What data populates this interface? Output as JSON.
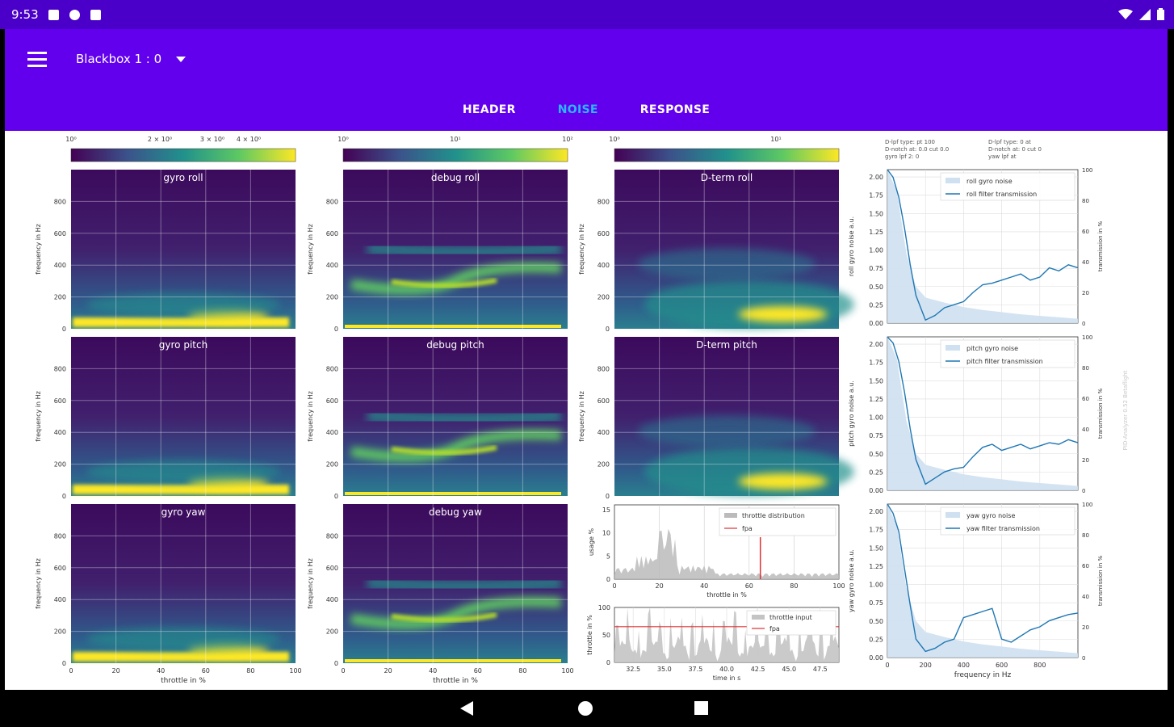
{
  "status_bar": {
    "time": "9:53"
  },
  "app_bar": {
    "dropdown_label": "Blackbox 1 : 0"
  },
  "tabs": [
    {
      "label": "HEADER",
      "active": false
    },
    {
      "label": "NOISE",
      "active": true
    },
    {
      "label": "RESPONSE",
      "active": false
    }
  ],
  "spectrograms": {
    "colorbars": [
      {
        "tick_labels": [
          "10⁰",
          "2 × 10⁰",
          "3 × 10⁰",
          "4 × 10⁰"
        ]
      },
      {
        "tick_labels": [
          "10⁰",
          "10¹",
          "10²"
        ]
      },
      {
        "tick_labels": [
          "10⁰",
          "10¹"
        ]
      }
    ],
    "titles": [
      [
        "gyro roll",
        "debug roll",
        "D-term roll"
      ],
      [
        "gyro pitch",
        "debug pitch",
        "D-term pitch"
      ],
      [
        "gyro yaw",
        "debug yaw",
        null
      ]
    ],
    "ylabel": "frequency in Hz",
    "xlabel": "throttle in %",
    "y_ticks": [
      "0",
      "200",
      "400",
      "600",
      "800"
    ],
    "x_ticks": [
      "0",
      "20",
      "40",
      "60",
      "80",
      "100"
    ]
  },
  "throttle_dist": {
    "ylabel": "usage %",
    "xlabel": "throttle in %",
    "y_ticks": [
      "0",
      "5",
      "10",
      "15"
    ],
    "x_ticks": [
      "0",
      "20",
      "40",
      "60",
      "80",
      "100"
    ],
    "legend": [
      "throttle distribution",
      "fpa"
    ]
  },
  "throttle_input": {
    "ylabel": "throttle in %",
    "xlabel": "time in s",
    "y_ticks": [
      "0",
      "50",
      "100"
    ],
    "x_ticks": [
      "32.5",
      "35.0",
      "37.5",
      "40.0",
      "42.5",
      "45.0",
      "47.5"
    ],
    "legend": [
      "throttle input",
      "fpa"
    ]
  },
  "filter_info": [
    "D-lpf type: pt 100",
    "D-notch at: 0.0 cut 0.0",
    "gyro lpf 2: 0",
    "D-lpf type: 0 at",
    "D-notch at: 0 cut 0",
    "yaw lpf at"
  ],
  "noise_plots": {
    "ylabels": [
      "roll gyro noise a.u.",
      "pitch gyro noise a.u.",
      "yaw gyro noise a.u."
    ],
    "legends": [
      [
        "roll gyro noise",
        "roll filter transmission"
      ],
      [
        "pitch gyro noise",
        "pitch filter transmission"
      ],
      [
        "yaw gyro noise",
        "yaw filter transmission"
      ]
    ],
    "y_ticks": [
      "0.00",
      "0.25",
      "0.50",
      "0.75",
      "1.00",
      "1.25",
      "1.50",
      "1.75",
      "2.00"
    ],
    "y2_ticks": [
      "0",
      "20",
      "40",
      "60",
      "80",
      "100"
    ],
    "y2_label": "transmission in %",
    "x_ticks": [
      "0",
      "200",
      "400",
      "600",
      "800"
    ],
    "xlabel": "frequency in Hz",
    "side_note": "PID-Analyzer 0.52 Betaflight"
  },
  "chart_data": [
    {
      "type": "heatmap",
      "title": "gyro roll",
      "x_range": [
        0,
        100
      ],
      "y_range": [
        0,
        1000
      ],
      "xlabel": "throttle in %",
      "ylabel": "frequency in Hz"
    },
    {
      "type": "heatmap",
      "title": "debug roll",
      "x_range": [
        0,
        100
      ],
      "y_range": [
        0,
        1000
      ],
      "xlabel": "throttle in %",
      "ylabel": "frequency in Hz"
    },
    {
      "type": "heatmap",
      "title": "D-term roll",
      "x_range": [
        0,
        100
      ],
      "y_range": [
        0,
        1000
      ],
      "xlabel": "throttle in %",
      "ylabel": "frequency in Hz"
    },
    {
      "type": "heatmap",
      "title": "gyro pitch",
      "x_range": [
        0,
        100
      ],
      "y_range": [
        0,
        1000
      ],
      "xlabel": "throttle in %",
      "ylabel": "frequency in Hz"
    },
    {
      "type": "heatmap",
      "title": "debug pitch",
      "x_range": [
        0,
        100
      ],
      "y_range": [
        0,
        1000
      ],
      "xlabel": "throttle in %",
      "ylabel": "frequency in Hz"
    },
    {
      "type": "heatmap",
      "title": "D-term pitch",
      "x_range": [
        0,
        100
      ],
      "y_range": [
        0,
        1000
      ],
      "xlabel": "throttle in %",
      "ylabel": "frequency in Hz"
    },
    {
      "type": "heatmap",
      "title": "gyro yaw",
      "x_range": [
        0,
        100
      ],
      "y_range": [
        0,
        1000
      ],
      "xlabel": "throttle in %",
      "ylabel": "frequency in Hz"
    },
    {
      "type": "heatmap",
      "title": "debug yaw",
      "x_range": [
        0,
        100
      ],
      "y_range": [
        0,
        1000
      ],
      "xlabel": "throttle in %",
      "ylabel": "frequency in Hz"
    },
    {
      "type": "bar",
      "xlabel": "throttle in %",
      "ylabel": "usage %",
      "xlim": [
        0,
        100
      ],
      "ylim": [
        0,
        16
      ],
      "fpa_line_x": 65
    },
    {
      "type": "area",
      "xlabel": "time in s",
      "ylabel": "throttle in %",
      "xlim": [
        31,
        49
      ],
      "ylim": [
        0,
        100
      ],
      "fpa_line_y": 65
    },
    {
      "type": "line",
      "ylabel": "roll gyro noise a.u.",
      "xlabel": "frequency in Hz",
      "xlim": [
        0,
        1000
      ],
      "ylim": [
        0,
        2.1
      ],
      "y2lim": [
        0,
        100
      ],
      "series": [
        {
          "name": "roll gyro noise",
          "x": [
            0,
            50,
            100,
            150,
            200,
            300,
            400,
            500,
            600,
            700,
            800,
            900,
            1000
          ],
          "values": [
            2.1,
            1.8,
            0.95,
            0.5,
            0.35,
            0.28,
            0.22,
            0.18,
            0.15,
            0.12,
            0.1,
            0.08,
            0.06
          ]
        },
        {
          "name": "roll filter transmission",
          "x": [
            0,
            30,
            60,
            90,
            120,
            150,
            200,
            250,
            300,
            350,
            400,
            450,
            500,
            550,
            600,
            650,
            700,
            750,
            800,
            850,
            900,
            950,
            1000
          ],
          "values": [
            100,
            95,
            82,
            62,
            38,
            18,
            2,
            5,
            10,
            12,
            14,
            20,
            25,
            26,
            28,
            30,
            32,
            28,
            30,
            36,
            34,
            38,
            36
          ]
        }
      ]
    },
    {
      "type": "line",
      "ylabel": "pitch gyro noise a.u.",
      "xlabel": "frequency in Hz",
      "xlim": [
        0,
        1000
      ],
      "ylim": [
        0,
        2.1
      ],
      "y2lim": [
        0,
        100
      ],
      "series": [
        {
          "name": "pitch gyro noise",
          "x": [
            0,
            50,
            100,
            150,
            200,
            300,
            400,
            500,
            600,
            700,
            800,
            900,
            1000
          ],
          "values": [
            2.1,
            1.8,
            0.95,
            0.5,
            0.35,
            0.28,
            0.22,
            0.18,
            0.15,
            0.12,
            0.1,
            0.08,
            0.06
          ]
        },
        {
          "name": "pitch filter transmission",
          "x": [
            0,
            30,
            60,
            90,
            120,
            150,
            200,
            250,
            300,
            350,
            400,
            450,
            500,
            550,
            600,
            650,
            700,
            750,
            800,
            850,
            900,
            950,
            1000
          ],
          "values": [
            100,
            96,
            84,
            64,
            40,
            20,
            4,
            8,
            12,
            14,
            15,
            22,
            28,
            30,
            26,
            28,
            30,
            27,
            29,
            31,
            30,
            33,
            31
          ]
        }
      ]
    },
    {
      "type": "line",
      "ylabel": "yaw gyro noise a.u.",
      "xlabel": "frequency in Hz",
      "xlim": [
        0,
        1000
      ],
      "ylim": [
        0,
        2.1
      ],
      "y2lim": [
        0,
        100
      ],
      "series": [
        {
          "name": "yaw gyro noise",
          "x": [
            0,
            50,
            100,
            150,
            200,
            300,
            400,
            500,
            600,
            700,
            800,
            900,
            1000
          ],
          "values": [
            2.1,
            1.8,
            0.95,
            0.5,
            0.35,
            0.28,
            0.22,
            0.18,
            0.15,
            0.12,
            0.1,
            0.08,
            0.06
          ]
        },
        {
          "name": "yaw filter transmission",
          "x": [
            0,
            30,
            60,
            90,
            120,
            150,
            200,
            250,
            300,
            350,
            400,
            450,
            500,
            550,
            600,
            650,
            700,
            750,
            800,
            850,
            900,
            950,
            1000
          ],
          "values": [
            100,
            94,
            82,
            58,
            34,
            12,
            4,
            6,
            10,
            12,
            26,
            28,
            30,
            32,
            12,
            10,
            14,
            18,
            20,
            24,
            26,
            28,
            29
          ]
        }
      ]
    }
  ],
  "colors": {
    "status_bar": "#4a00c8",
    "app_bar": "#6200ee",
    "tab_active": "#2ab8ff",
    "noise_fill": "#cfe0f0",
    "transmission_line": "#1f77b4",
    "fpa_line": "#e03030"
  }
}
